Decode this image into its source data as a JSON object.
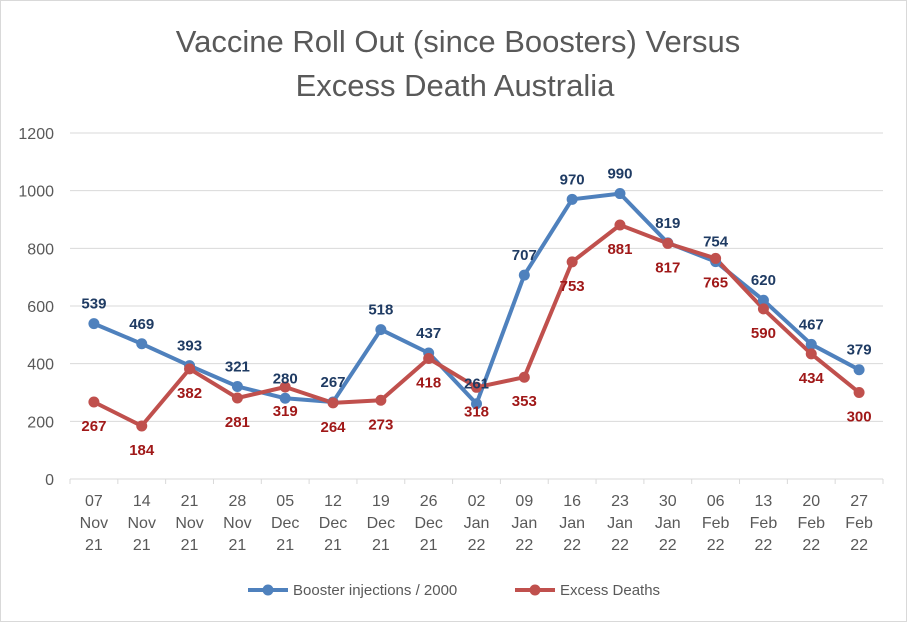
{
  "chart_data": {
    "type": "line",
    "title_lines": [
      "Vaccine Roll Out (since Boosters) Versus",
      "Excess Death Australia"
    ],
    "categories": [
      [
        "07",
        "Nov",
        "21"
      ],
      [
        "14",
        "Nov",
        "21"
      ],
      [
        "21",
        "Nov",
        "21"
      ],
      [
        "28",
        "Nov",
        "21"
      ],
      [
        "05",
        "Dec",
        "21"
      ],
      [
        "12",
        "Dec",
        "21"
      ],
      [
        "19",
        "Dec",
        "21"
      ],
      [
        "26",
        "Dec",
        "21"
      ],
      [
        "02",
        "Jan",
        "22"
      ],
      [
        "09",
        "Jan",
        "22"
      ],
      [
        "16",
        "Jan",
        "22"
      ],
      [
        "23",
        "Jan",
        "22"
      ],
      [
        "30",
        "Jan",
        "22"
      ],
      [
        "06",
        "Feb",
        "22"
      ],
      [
        "13",
        "Feb",
        "22"
      ],
      [
        "20",
        "Feb",
        "22"
      ],
      [
        "27",
        "Feb",
        "22"
      ]
    ],
    "ylim": [
      0,
      1200
    ],
    "yticks": [
      0,
      200,
      400,
      600,
      800,
      1000,
      1200
    ],
    "grid": true,
    "legend_position": "bottom",
    "series": [
      {
        "name": "Booster injections / 2000",
        "color": "#4f81bd",
        "label_color": "#1f3b63",
        "values": [
          539,
          469,
          393,
          321,
          280,
          267,
          518,
          437,
          261,
          707,
          970,
          990,
          819,
          754,
          620,
          467,
          379
        ],
        "label_position": "above"
      },
      {
        "name": "Excess Deaths",
        "color": "#c0504d",
        "label_color": "#a01818",
        "values": [
          267,
          184,
          382,
          281,
          319,
          264,
          273,
          418,
          318,
          353,
          753,
          881,
          817,
          765,
          590,
          434,
          300
        ],
        "label_position": "below"
      }
    ]
  }
}
